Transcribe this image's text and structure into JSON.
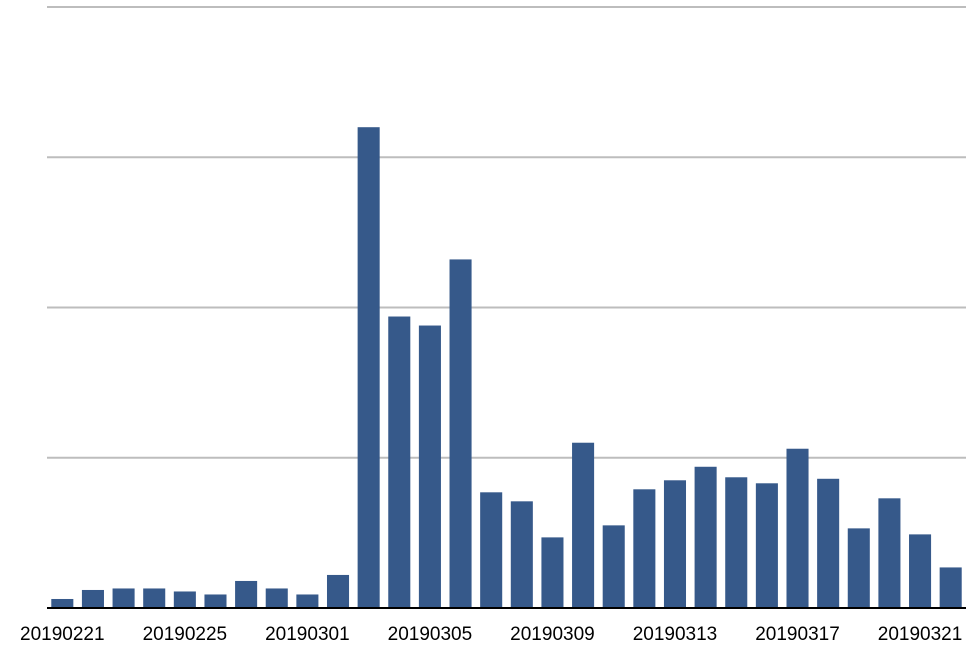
{
  "chart_data": {
    "type": "bar",
    "categories": [
      "20190221",
      null,
      null,
      null,
      "20190225",
      null,
      null,
      null,
      "20190301",
      null,
      null,
      null,
      "20190305",
      null,
      null,
      null,
      "20190309",
      null,
      null,
      null,
      "20190313",
      null,
      null,
      null,
      "20190317",
      null,
      null,
      null,
      "20190321",
      null
    ],
    "values": [
      0.06,
      0.12,
      0.13,
      0.13,
      0.11,
      0.09,
      0.18,
      0.13,
      0.09,
      0.22,
      3.2,
      1.94,
      1.88,
      2.32,
      0.77,
      0.71,
      0.47,
      1.1,
      0.55,
      0.79,
      0.85,
      0.94,
      0.87,
      0.83,
      1.06,
      0.86,
      0.53,
      0.73,
      0.49,
      0.27
    ],
    "color": "#36598a",
    "ylim": [
      0,
      4
    ],
    "yticks": [
      0,
      1,
      2,
      3,
      4
    ],
    "grid": true
  }
}
